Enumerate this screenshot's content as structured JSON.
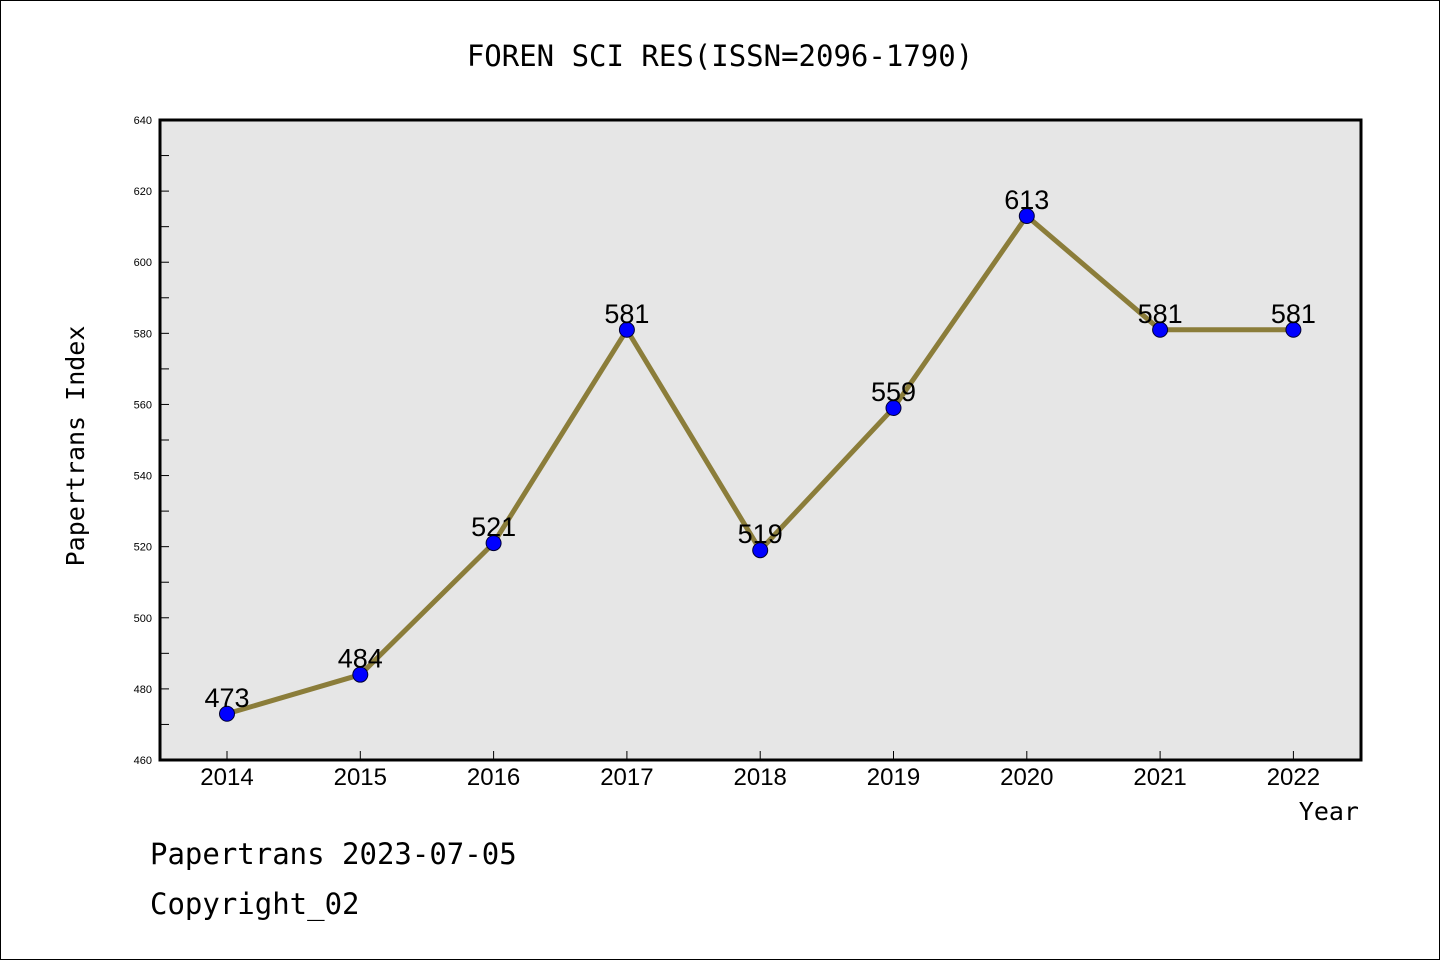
{
  "chart_data": {
    "type": "line",
    "title": "FOREN SCI RES(ISSN=2096-1790)",
    "xlabel": "Year",
    "ylabel": "Papertrans Index",
    "categories": [
      "2014",
      "2015",
      "2016",
      "2017",
      "2018",
      "2019",
      "2020",
      "2021",
      "2022"
    ],
    "values": [
      473,
      484,
      521,
      581,
      519,
      559,
      613,
      581,
      581
    ],
    "data_labels": [
      "473",
      "484",
      "521",
      "581",
      "519",
      "559",
      "613",
      "581",
      "581"
    ],
    "ylim": [
      460,
      640
    ],
    "yticks": [
      "460",
      "480",
      "500",
      "520",
      "540",
      "560",
      "580",
      "600",
      "620",
      "640"
    ],
    "grid": false,
    "colors": {
      "line": "#8B7D3A",
      "marker": "#0000FF",
      "plot_bg": "#E6E6E6"
    }
  },
  "footer": {
    "line1": "Papertrans 2023-07-05",
    "line2": "Copyright_02"
  }
}
